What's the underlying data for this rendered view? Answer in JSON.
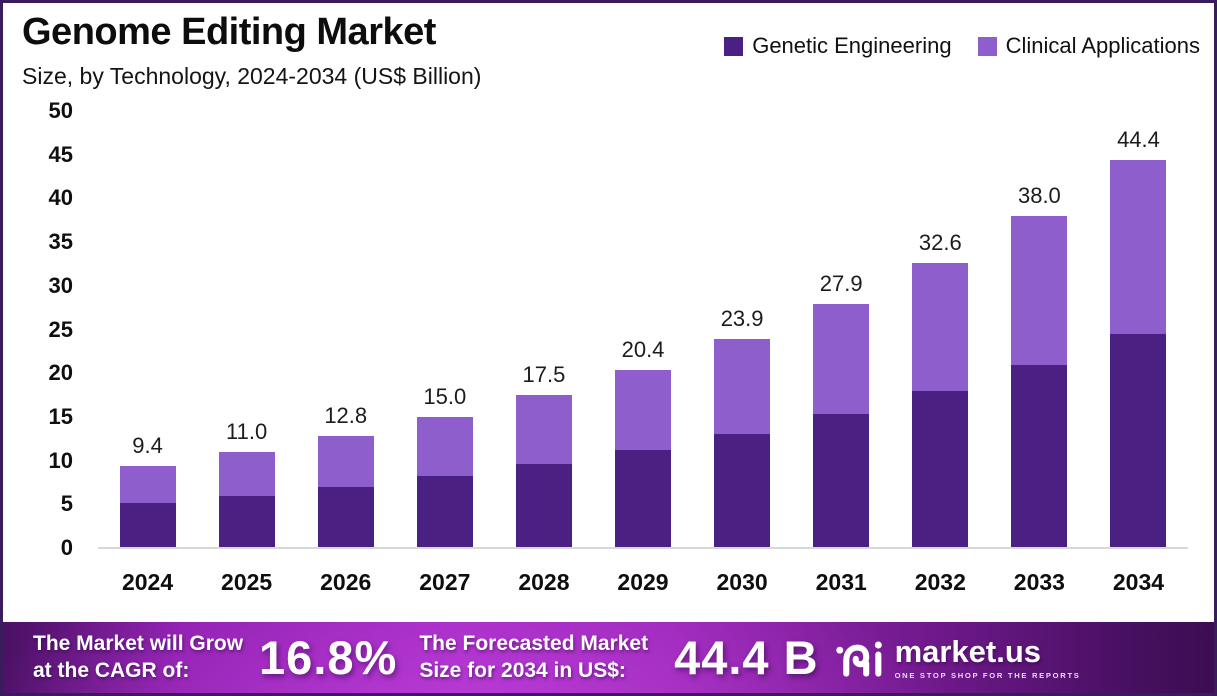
{
  "header": {
    "title": "Genome Editing Market",
    "subtitle": "Size, by Technology, 2024-2034 (US$ Billion)"
  },
  "colors": {
    "genetic_engineering": "#4a2183",
    "clinical_applications": "#8f5ecd",
    "frame_border": "#3a1b5c",
    "banner_gradient": [
      "#4a1163",
      "#a32cc4",
      "#3c0d52"
    ],
    "axis_text": "#0f0f0f"
  },
  "chart_data": {
    "type": "bar",
    "stacked": true,
    "title": "Genome Editing Market",
    "subtitle": "Size, by Technology, 2024-2034 (US$ Billion)",
    "xlabel": "",
    "ylabel": "US$ Billion",
    "categories": [
      "2024",
      "2025",
      "2026",
      "2027",
      "2028",
      "2029",
      "2030",
      "2031",
      "2032",
      "2033",
      "2034"
    ],
    "series": [
      {
        "name": "Genetic Engineering",
        "color": "#4a2183",
        "values": [
          5.1,
          6.0,
          7.0,
          8.2,
          9.6,
          11.2,
          13.1,
          15.3,
          18.0,
          20.9,
          24.5
        ]
      },
      {
        "name": "Clinical Applications",
        "color": "#8f5ecd",
        "values": [
          4.3,
          5.0,
          5.8,
          6.8,
          7.9,
          9.2,
          10.8,
          12.6,
          14.6,
          17.1,
          19.9
        ]
      }
    ],
    "totals": [
      9.4,
      11.0,
      12.8,
      15.0,
      17.5,
      20.4,
      23.9,
      27.9,
      32.6,
      38.0,
      44.4
    ],
    "total_labels": [
      "9.4",
      "11.0",
      "12.8",
      "15.0",
      "17.5",
      "20.4",
      "23.9",
      "27.9",
      "32.6",
      "38.0",
      "44.4"
    ],
    "ylim": [
      0,
      50
    ],
    "yticks": [
      0,
      5,
      10,
      15,
      20,
      25,
      30,
      35,
      40,
      45,
      50
    ],
    "grid": false,
    "legend_position": "top-right"
  },
  "legend": [
    {
      "label": "Genetic Engineering",
      "color": "#4a2183"
    },
    {
      "label": "Clinical Applications",
      "color": "#8f5ecd"
    }
  ],
  "banner": {
    "cagr_label_line1": "The Market will Grow",
    "cagr_label_line2": "at the CAGR of:",
    "cagr_value": "16.8%",
    "forecast_label_line1": "The Forecasted Market",
    "forecast_label_line2": "Size for 2034 in US$:",
    "forecast_value": "44.4 B",
    "logo": {
      "name": "market.us",
      "tagline": "ONE STOP SHOP FOR THE REPORTS",
      "icon": "marketus-curl-icon"
    }
  }
}
